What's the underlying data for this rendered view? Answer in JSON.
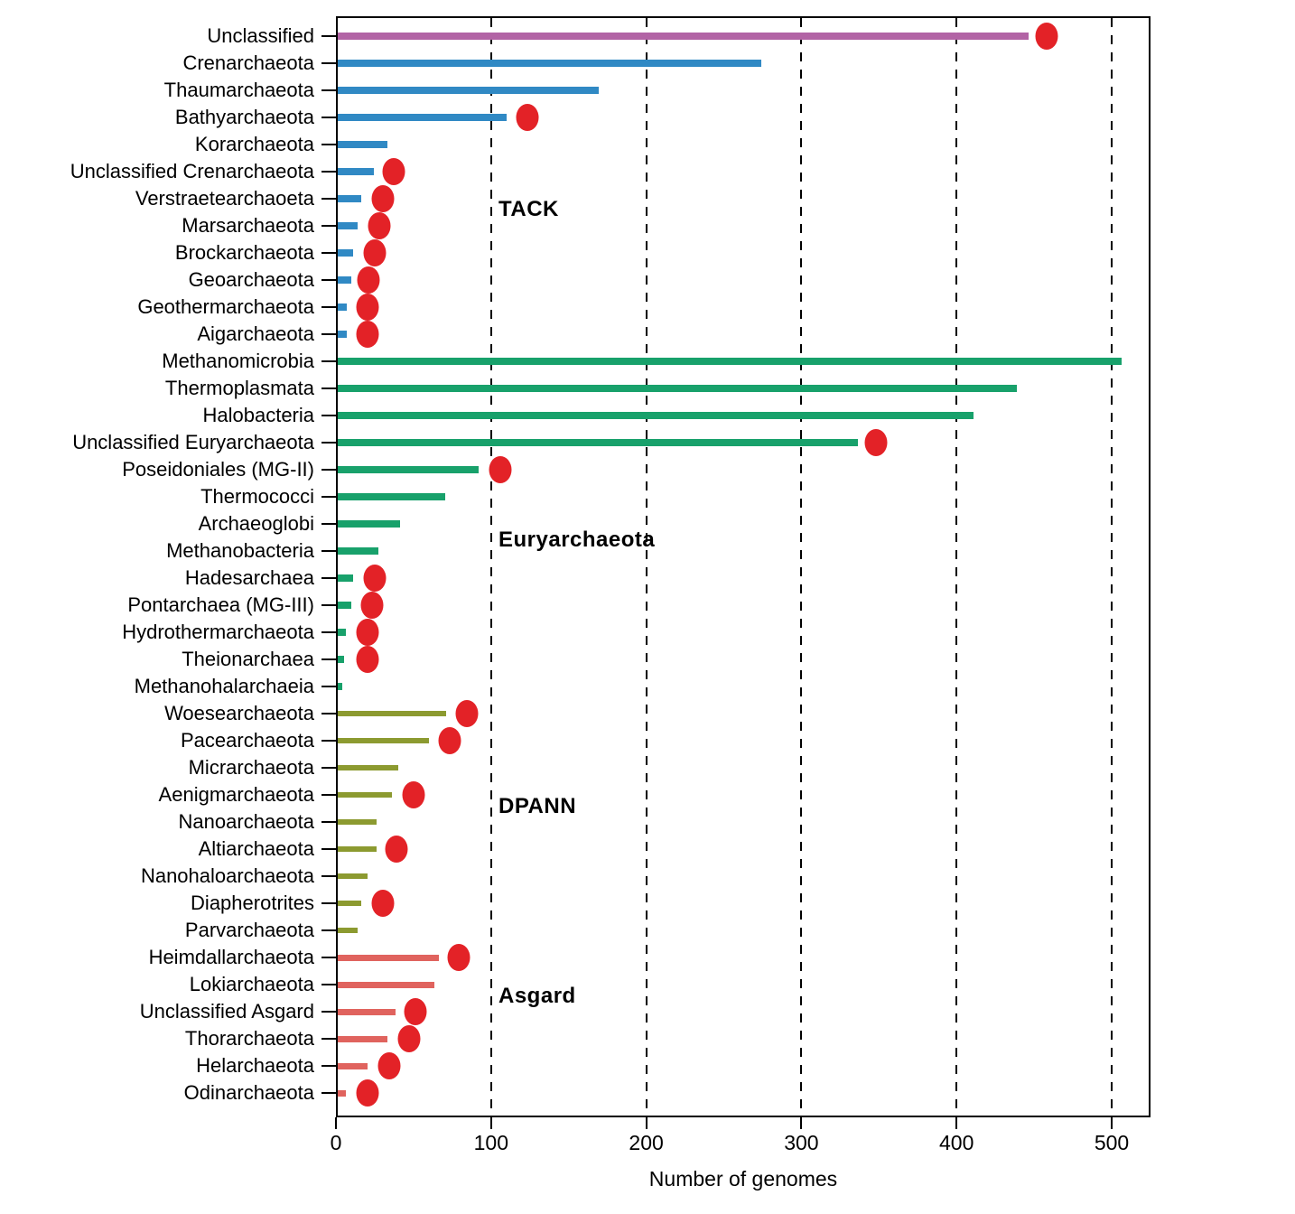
{
  "x_axis_title": "Number of genomes",
  "colors": {
    "unclassified_bar": "#b264a5",
    "tack_bar": "#3089c4",
    "euryarchaeota_bar": "#18a16b",
    "dpann_bar": "#8c9a30",
    "asgard_bar": "#e0635e",
    "dot": "#e32227",
    "axis": "#000000"
  },
  "chart_data": {
    "type": "bar",
    "subtype": "horizontal-lollipop",
    "title": "",
    "xlabel": "Number of genomes",
    "ylabel": "",
    "xlim": [
      0,
      525
    ],
    "x_ticks": [
      0,
      100,
      200,
      300,
      400,
      500
    ],
    "grid": "vertical dashed lines at 100,200,300,400,500",
    "legend": "none",
    "groups": [
      {
        "label": "",
        "color_key": "unclassified_bar",
        "rows": [
          {
            "name": "Unclassified",
            "bar": 445,
            "dot": 457
          }
        ]
      },
      {
        "label": "TACK",
        "color_key": "tack_bar",
        "rows": [
          {
            "name": "Crenarchaeota",
            "bar": 273,
            "dot": null
          },
          {
            "name": "Thaumarchaeota",
            "bar": 168,
            "dot": null
          },
          {
            "name": "Bathyarchaeota",
            "bar": 109,
            "dot": 122
          },
          {
            "name": "Korarchaeota",
            "bar": 32,
            "dot": null
          },
          {
            "name": "Unclassified Crenarchaeota",
            "bar": 23,
            "dot": 36
          },
          {
            "name": "Verstraetearchaoeta",
            "bar": 15,
            "dot": 29
          },
          {
            "name": "Marsarchaeota",
            "bar": 13,
            "dot": 27
          },
          {
            "name": "Brockarchaeota",
            "bar": 10,
            "dot": 24
          },
          {
            "name": "Geoarchaeota",
            "bar": 9,
            "dot": 20
          },
          {
            "name": "Geothermarchaeota",
            "bar": 6,
            "dot": 19
          },
          {
            "name": "Aigarchaeota",
            "bar": 6,
            "dot": 19
          }
        ]
      },
      {
        "label": "Euryarchaeota",
        "color_key": "euryarchaeota_bar",
        "rows": [
          {
            "name": "Methanomicrobia",
            "bar": 505,
            "dot": null
          },
          {
            "name": "Thermoplasmata",
            "bar": 438,
            "dot": null
          },
          {
            "name": "Halobacteria",
            "bar": 410,
            "dot": null
          },
          {
            "name": "Unclassified Euryarchaeota",
            "bar": 335,
            "dot": 347
          },
          {
            "name": "Poseidoniales (MG-II)",
            "bar": 91,
            "dot": 105
          },
          {
            "name": "Thermococci",
            "bar": 69,
            "dot": null
          },
          {
            "name": "Archaeoglobi",
            "bar": 40,
            "dot": null
          },
          {
            "name": "Methanobacteria",
            "bar": 26,
            "dot": null
          },
          {
            "name": "Hadesarchaea",
            "bar": 10,
            "dot": 24
          },
          {
            "name": "Pontarchaea (MG-III)",
            "bar": 9,
            "dot": 22
          },
          {
            "name": "Hydrothermarchaeota",
            "bar": 5,
            "dot": 19
          },
          {
            "name": "Theionarchaea",
            "bar": 4,
            "dot": 19
          },
          {
            "name": "Methanohalarchaeia",
            "bar": 3,
            "dot": null
          }
        ]
      },
      {
        "label": "DPANN",
        "color_key": "dpann_bar",
        "rows": [
          {
            "name": "Woesearchaeota",
            "bar": 70,
            "dot": 83
          },
          {
            "name": "Pacearchaeota",
            "bar": 59,
            "dot": 72
          },
          {
            "name": "Micrarchaeota",
            "bar": 39,
            "dot": null
          },
          {
            "name": "Aenigmarchaeota",
            "bar": 35,
            "dot": 49
          },
          {
            "name": "Nanoarchaeota",
            "bar": 25,
            "dot": null
          },
          {
            "name": "Altiarchaeota",
            "bar": 25,
            "dot": 38
          },
          {
            "name": "Nanohaloarchaeota",
            "bar": 19,
            "dot": null
          },
          {
            "name": "Diapherotrites",
            "bar": 15,
            "dot": 29
          },
          {
            "name": "Parvarchaeota",
            "bar": 13,
            "dot": null
          }
        ]
      },
      {
        "label": "Asgard",
        "color_key": "asgard_bar",
        "rows": [
          {
            "name": "Heimdallarchaeota",
            "bar": 65,
            "dot": 78
          },
          {
            "name": "Lokiarchaeota",
            "bar": 62,
            "dot": null
          },
          {
            "name": "Unclassified Asgard",
            "bar": 37,
            "dot": 50
          },
          {
            "name": "Thorarchaeota",
            "bar": 32,
            "dot": 46
          },
          {
            "name": "Helarchaeota",
            "bar": 19,
            "dot": 33
          },
          {
            "name": "Odinarchaeota",
            "bar": 5,
            "dot": 19
          }
        ]
      }
    ]
  }
}
